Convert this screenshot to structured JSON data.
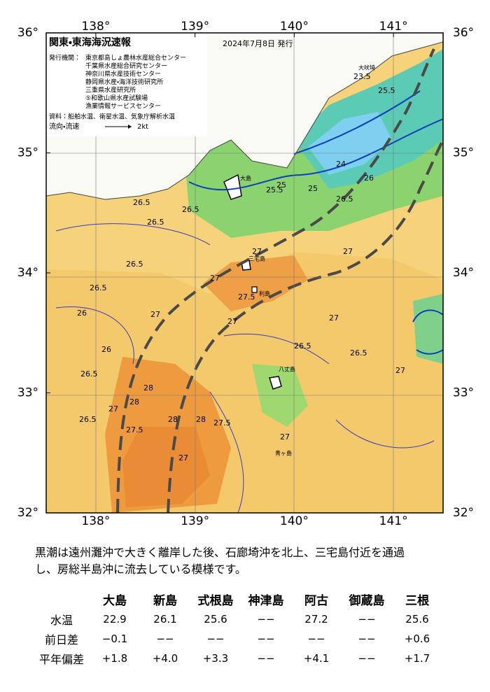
{
  "header": {
    "title": "関東・東海海況速報",
    "date": "2024年7月8日 発行",
    "issuer_label": "発行機関：",
    "issuers": [
      "東京都島しょ農林水産総合センター",
      "千葉県水産総合研究センター",
      "神奈川県水産技術センター",
      "静岡県水産・海洋技術研究所",
      "三重県水産研究所",
      "⑤和歌山県水産試験場",
      "漁業情報サービスセンター"
    ],
    "sources": "資料：船舶水温、衛星水温、気象庁解析水温",
    "flow_label": "流向・流速",
    "flow_scale": "2kt"
  },
  "map": {
    "lon_ticks": [
      {
        "value": 138,
        "label": "138°"
      },
      {
        "value": 139,
        "label": "139°"
      },
      {
        "value": 140,
        "label": "140°"
      },
      {
        "value": 141,
        "label": "141°"
      }
    ],
    "lat_ticks": [
      {
        "value": 36,
        "label": "36°"
      },
      {
        "value": 35,
        "label": "35°"
      },
      {
        "value": 34,
        "label": "34°"
      },
      {
        "value": 33,
        "label": "33°"
      },
      {
        "value": 32,
        "label": "32°"
      }
    ],
    "lonlim": [
      137.5,
      141.5
    ],
    "latlim": [
      32,
      36
    ],
    "contour_labels": [
      "26.5",
      "26.5",
      "26.5",
      "26.5",
      "26",
      "27",
      "27",
      "27.5",
      "27",
      "27",
      "28",
      "28",
      "27.5",
      "28",
      "28",
      "27.5",
      "27",
      "26.5",
      "27",
      "26.5",
      "26",
      "26.5",
      "27",
      "26.5",
      "25",
      "25.5",
      "24",
      "23.5",
      "25.5",
      "26",
      "26.5",
      "25",
      "27",
      "27",
      "26.5",
      "27"
    ],
    "places": [
      "大島",
      "三宅島",
      "八丈島",
      "青ヶ島",
      "利島",
      "大吠埼"
    ]
  },
  "description": [
    "黒潮は遠州灘沖で大きく離岸した後、石廊埼沖を北上、三宅島付近を通過",
    "し、房総半島沖に流去している模様です。"
  ],
  "table": {
    "columns": [
      "大島",
      "新島",
      "式根島",
      "神津島",
      "阿古",
      "御蔵島",
      "三根"
    ],
    "rows": [
      [
        "水温",
        "22.9",
        "26.1",
        "25.6",
        "−−",
        "27.2",
        "−−",
        "25.6"
      ],
      [
        "前日差",
        "−0.1",
        "−−",
        "−−",
        "−−",
        "−−",
        "−−",
        "+0.6"
      ],
      [
        "平年偏差",
        "+1.8",
        "+4.0",
        "+3.3",
        "−−",
        "+4.1",
        "−−",
        "+1.7"
      ]
    ]
  }
}
